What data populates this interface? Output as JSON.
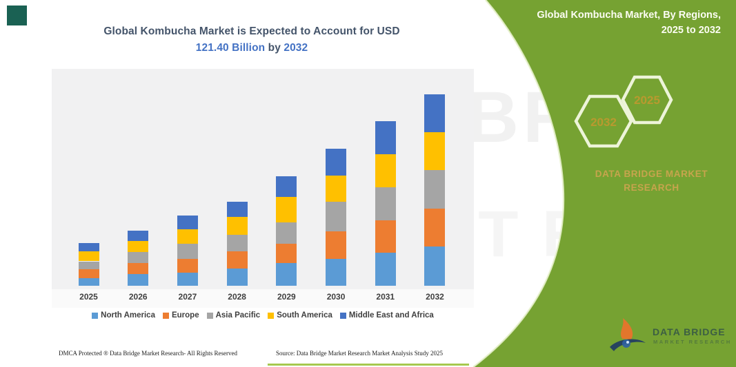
{
  "page": {
    "title_line1": "Global Kombucha Market is Expected to Account for USD",
    "title_value": "121.40 Billion",
    "title_mid": " by ",
    "title_year": "2032"
  },
  "panel": {
    "heading": "Global Kombucha Market, By Regions, 2025 to 2032",
    "hexagon_left_year": "2032",
    "hexagon_right_year": "2025",
    "brand_text": "DATA BRIDGE MARKET RESEARCH",
    "panel_color": "#76A232",
    "hexagon_outline_color": "#EDF4D9",
    "hexagon_year_color": "#B9992F",
    "brand_text_color": "#C7A44D"
  },
  "logo": {
    "name": "DATA BRIDGE",
    "subtitle": "MARKET RESEARCH"
  },
  "watermark": {
    "line1": "DATA BRIDGE",
    "line2": "MARKET RESEARCH"
  },
  "footer": {
    "dmca": "DMCA Protected ® Data Bridge Market Research-  All Rights Reserved",
    "source": "Source: Data Bridge Market Research  Market Analysis Study 2025"
  },
  "chart_data": {
    "type": "bar",
    "stacked": true,
    "title": "Global Kombucha Market is Expected to Account for USD 121.40 Billion by 2032",
    "unit": "USD Billion",
    "categories": [
      "2025",
      "2026",
      "2027",
      "2028",
      "2029",
      "2030",
      "2031",
      "2032"
    ],
    "series": [
      {
        "name": "North America",
        "color": "#5B9BD5",
        "values": [
          5.0,
          7.4,
          8.2,
          10.8,
          14.2,
          17.1,
          20.9,
          24.8
        ]
      },
      {
        "name": "Europe",
        "color": "#ED7D31",
        "values": [
          5.6,
          7.0,
          9.0,
          11.2,
          12.6,
          17.2,
          20.6,
          24.0
        ]
      },
      {
        "name": "Asia Pacific",
        "color": "#A5A5A5",
        "values": [
          4.9,
          7.0,
          9.6,
          10.4,
          13.5,
          18.8,
          21.1,
          24.5
        ]
      },
      {
        "name": "South America",
        "color": "#FFC000",
        "values": [
          6.4,
          6.8,
          8.8,
          11.4,
          16.0,
          16.7,
          20.7,
          24.1
        ]
      },
      {
        "name": "Middle East and Africa",
        "color": "#4472C4",
        "values": [
          5.2,
          6.7,
          8.9,
          9.5,
          13.1,
          17.1,
          21.1,
          24.0
        ]
      }
    ],
    "totals": [
      27.1,
      34.9,
      44.5,
      53.3,
      69.4,
      86.9,
      104.4,
      121.4
    ],
    "ylim": [
      0,
      125
    ],
    "xlabel": "",
    "ylabel": "",
    "grid": false,
    "value_axis_visible": false,
    "legend_position": "bottom"
  }
}
